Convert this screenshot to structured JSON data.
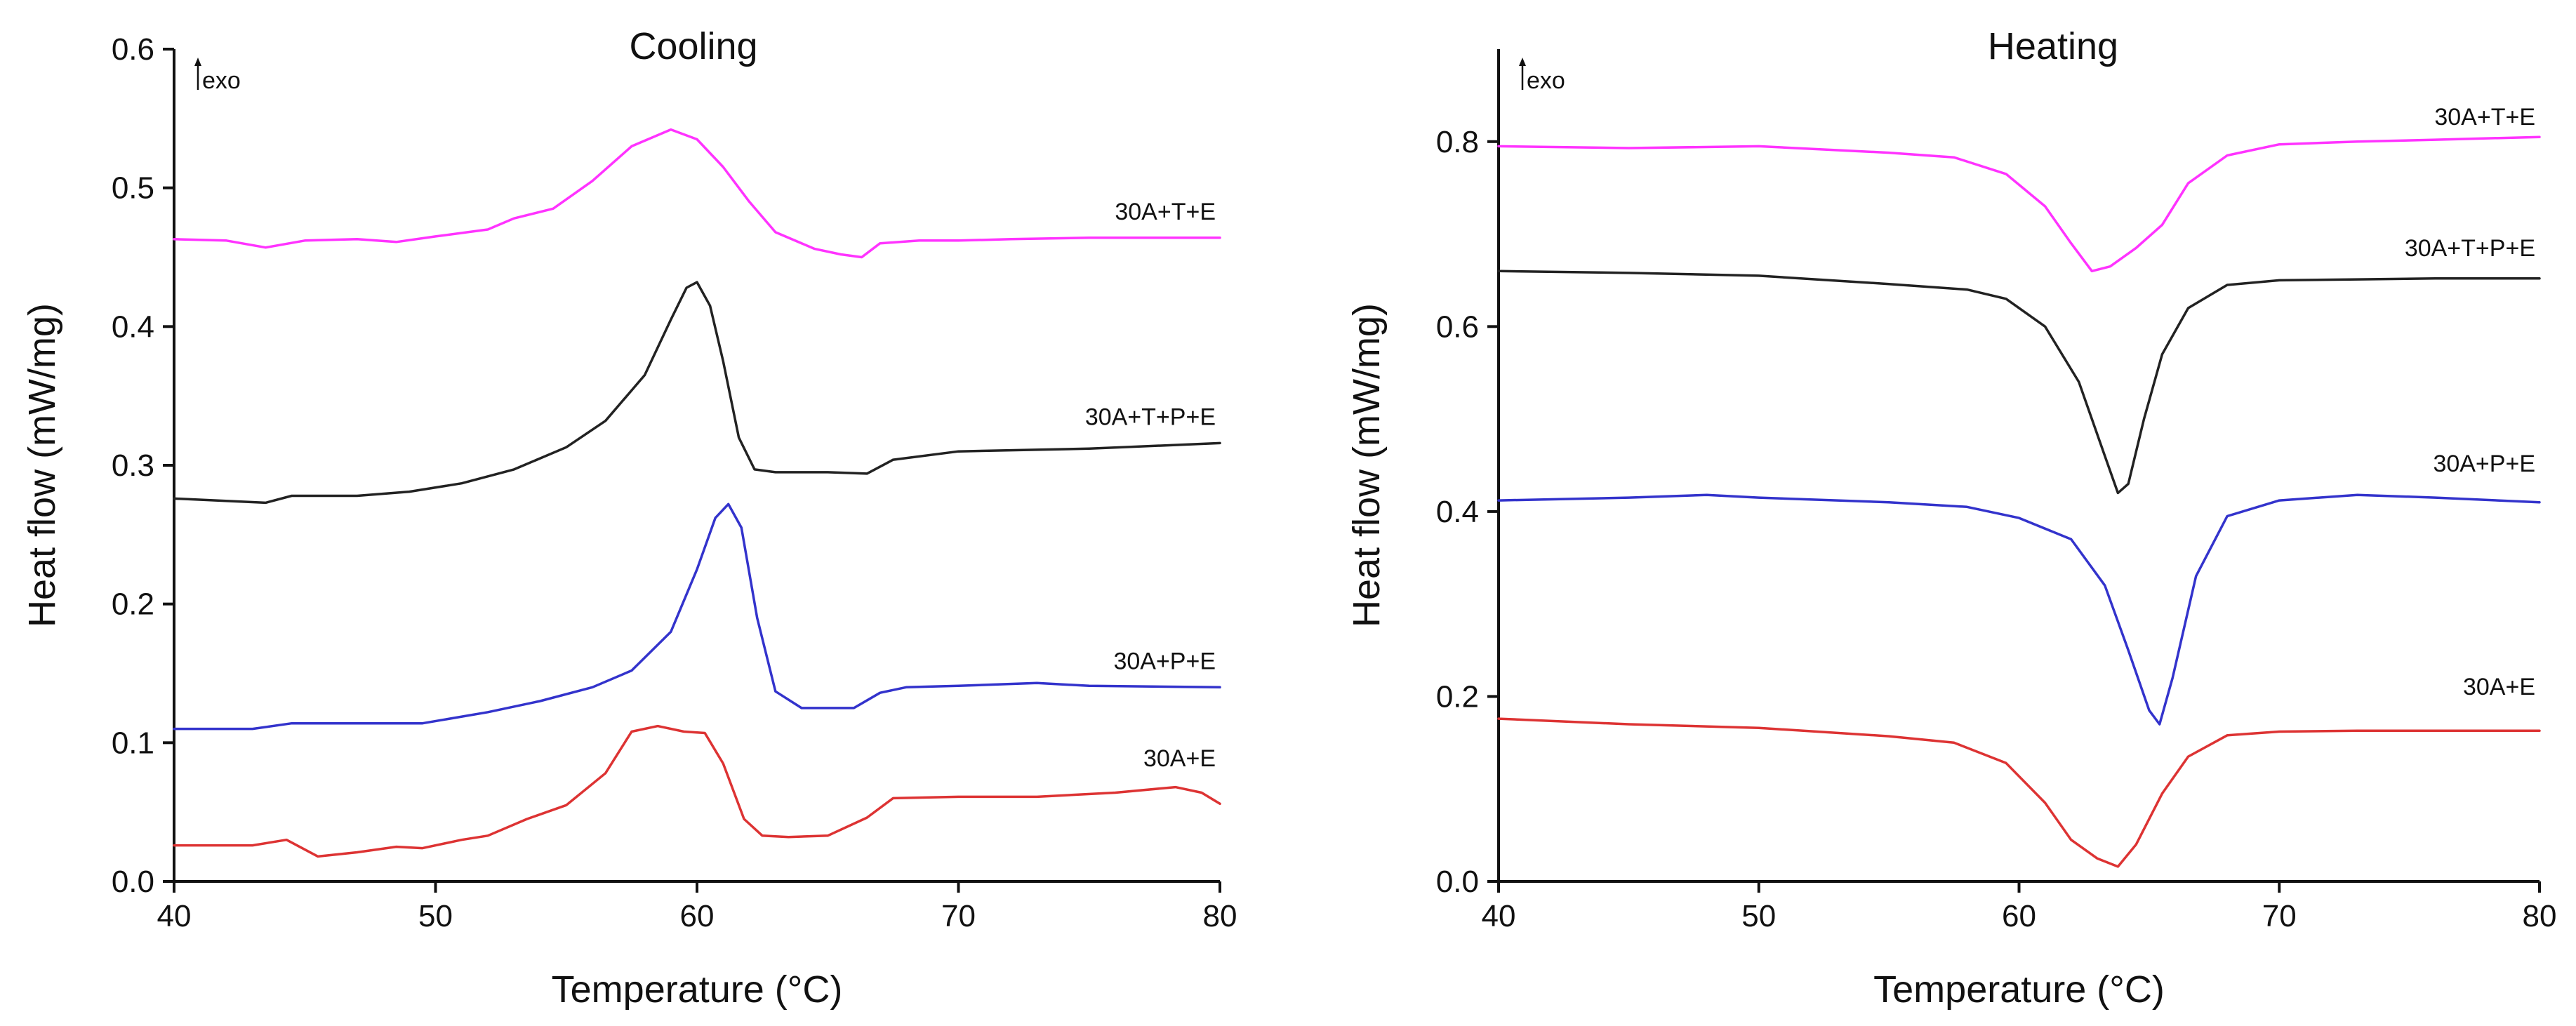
{
  "chart_data": [
    {
      "type": "line",
      "title": "Cooling",
      "xlabel": "Temperature (°C)",
      "ylabel": "Heat flow (mW/mg)",
      "annotation": "exo",
      "xlim": [
        40,
        80
      ],
      "ylim": [
        0.0,
        0.6
      ],
      "xticks": [
        40,
        50,
        60,
        70,
        80
      ],
      "yticks": [
        0.0,
        0.1,
        0.2,
        0.3,
        0.4,
        0.5,
        0.6
      ],
      "ytick_labels": [
        "0.0",
        "0.1",
        "0.2",
        "0.3",
        "0.4",
        "0.5",
        "0.6"
      ],
      "series": [
        {
          "name": "30A+T+E",
          "color": "#ff33ff",
          "x": [
            40,
            42,
            43.5,
            45,
            47,
            48.5,
            50,
            52,
            53,
            54.5,
            56,
            57.5,
            59,
            60,
            61,
            62,
            63,
            64.5,
            65.5,
            66.3,
            67,
            68.5,
            70,
            72,
            75,
            78,
            80
          ],
          "y": [
            0.463,
            0.462,
            0.457,
            0.462,
            0.463,
            0.461,
            0.465,
            0.47,
            0.478,
            0.485,
            0.505,
            0.53,
            0.542,
            0.535,
            0.515,
            0.49,
            0.468,
            0.456,
            0.452,
            0.45,
            0.46,
            0.462,
            0.462,
            0.463,
            0.464,
            0.464,
            0.464
          ]
        },
        {
          "name": "30A+T+P+E",
          "color": "#222222",
          "x": [
            40,
            43.5,
            44.5,
            47,
            49,
            51,
            53,
            55,
            56.5,
            58,
            59,
            59.6,
            60,
            60.5,
            61,
            61.6,
            62.2,
            63,
            65,
            66.5,
            67.5,
            70,
            75,
            80
          ],
          "y": [
            0.276,
            0.273,
            0.278,
            0.278,
            0.281,
            0.287,
            0.297,
            0.313,
            0.332,
            0.365,
            0.405,
            0.428,
            0.432,
            0.415,
            0.375,
            0.32,
            0.297,
            0.295,
            0.295,
            0.294,
            0.304,
            0.31,
            0.312,
            0.316
          ]
        },
        {
          "name": "30A+P+E",
          "color": "#3333cc",
          "x": [
            40,
            43,
            44.5,
            47,
            49.5,
            52,
            54,
            56,
            57.5,
            59,
            60,
            60.7,
            61.2,
            61.7,
            62.3,
            63,
            64,
            66,
            67,
            68,
            70,
            73,
            75,
            80
          ],
          "y": [
            0.11,
            0.11,
            0.114,
            0.114,
            0.114,
            0.122,
            0.13,
            0.14,
            0.152,
            0.18,
            0.225,
            0.262,
            0.272,
            0.255,
            0.19,
            0.137,
            0.125,
            0.125,
            0.136,
            0.14,
            0.141,
            0.143,
            0.141,
            0.14
          ]
        },
        {
          "name": "30A+E",
          "color": "#dd3333",
          "x": [
            40,
            43,
            44.3,
            45.5,
            47,
            48.5,
            49.5,
            51,
            52,
            53.5,
            55,
            56.5,
            57.5,
            58.5,
            59.5,
            60.3,
            61,
            61.8,
            62.5,
            63.5,
            65,
            66.5,
            67.5,
            70,
            73,
            76,
            78.3,
            79.3,
            80
          ],
          "y": [
            0.026,
            0.026,
            0.03,
            0.018,
            0.021,
            0.025,
            0.024,
            0.03,
            0.033,
            0.045,
            0.055,
            0.078,
            0.108,
            0.112,
            0.108,
            0.107,
            0.085,
            0.045,
            0.033,
            0.032,
            0.033,
            0.046,
            0.06,
            0.061,
            0.061,
            0.064,
            0.068,
            0.064,
            0.056
          ]
        }
      ]
    },
    {
      "type": "line",
      "title": "Heating",
      "xlabel": "Temperature (°C)",
      "ylabel": "Heat flow (mW/mg)",
      "annotation": "exo",
      "xlim": [
        40,
        80
      ],
      "ylim": [
        0.0,
        0.9
      ],
      "xticks": [
        40,
        50,
        60,
        70,
        80
      ],
      "yticks": [
        0.0,
        0.2,
        0.4,
        0.6,
        0.8
      ],
      "ytick_labels": [
        "0.0",
        "0.2",
        "0.4",
        "0.6",
        "0.8"
      ],
      "series": [
        {
          "name": "30A+T+E",
          "color": "#ff33ff",
          "x": [
            40,
            45,
            50,
            55,
            57.5,
            59.5,
            61,
            62,
            62.8,
            63.5,
            64.5,
            65.5,
            66.5,
            68,
            70,
            73,
            76,
            80
          ],
          "y": [
            0.795,
            0.793,
            0.795,
            0.788,
            0.783,
            0.765,
            0.73,
            0.69,
            0.66,
            0.665,
            0.685,
            0.71,
            0.755,
            0.785,
            0.797,
            0.8,
            0.802,
            0.805
          ]
        },
        {
          "name": "30A+T+P+E",
          "color": "#222222",
          "x": [
            40,
            45,
            50,
            55,
            58,
            59.5,
            61,
            62.3,
            63.3,
            63.8,
            64.2,
            64.8,
            65.5,
            66.5,
            68,
            70,
            73,
            76,
            80
          ],
          "y": [
            0.66,
            0.658,
            0.655,
            0.646,
            0.64,
            0.63,
            0.6,
            0.54,
            0.46,
            0.42,
            0.43,
            0.5,
            0.57,
            0.62,
            0.645,
            0.65,
            0.651,
            0.652,
            0.652
          ]
        },
        {
          "name": "30A+P+E",
          "color": "#3333cc",
          "x": [
            40,
            45,
            48,
            50,
            55,
            58,
            60,
            62,
            63.3,
            64.2,
            65,
            65.4,
            65.9,
            66.8,
            68,
            70,
            73,
            76,
            80
          ],
          "y": [
            0.412,
            0.415,
            0.418,
            0.415,
            0.41,
            0.405,
            0.393,
            0.37,
            0.32,
            0.25,
            0.185,
            0.17,
            0.22,
            0.33,
            0.395,
            0.412,
            0.418,
            0.415,
            0.41
          ]
        },
        {
          "name": "30A+E",
          "color": "#dd3333",
          "x": [
            40,
            45,
            50,
            55,
            57.5,
            59.5,
            61,
            62,
            63,
            63.8,
            64.5,
            65.5,
            66.5,
            68,
            70,
            73,
            76,
            80
          ],
          "y": [
            0.176,
            0.17,
            0.166,
            0.157,
            0.15,
            0.128,
            0.085,
            0.045,
            0.025,
            0.016,
            0.04,
            0.095,
            0.135,
            0.158,
            0.162,
            0.163,
            0.163,
            0.163
          ]
        }
      ]
    }
  ]
}
